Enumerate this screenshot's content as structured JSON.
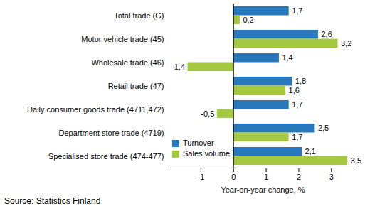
{
  "chart_data": {
    "type": "bar",
    "orientation": "horizontal",
    "categories": [
      "Total trade (G)",
      "Motor vehicle trade (45)",
      "Wholesale trade (46)",
      "Retail trade (47)",
      "Daily consumer goods trade (4711,472)",
      "Department store trade (4719)",
      "Specialised store trade (474-477)"
    ],
    "series": [
      {
        "name": "Turnover",
        "color": "#2878bd",
        "values": [
          1.7,
          2.6,
          1.4,
          1.8,
          1.7,
          2.5,
          2.1
        ],
        "value_labels": [
          "1,7",
          "2,6",
          "1,4",
          "1,8",
          "1,7",
          "2,5",
          "2,1"
        ]
      },
      {
        "name": "Sales volume",
        "color": "#a4c940",
        "values": [
          0.2,
          3.2,
          -1.4,
          1.6,
          -0.5,
          1.7,
          3.5
        ],
        "value_labels": [
          "0,2",
          "3,2",
          "-1,4",
          "1,6",
          "-0,5",
          "1,7",
          "3,5"
        ]
      }
    ],
    "xlim": [
      -2,
      3.8
    ],
    "xticks": [
      -1,
      0,
      1,
      2,
      3
    ],
    "xlabel": "Year-on-year change, %",
    "data_labels": true,
    "legend": "lower left",
    "grid": false,
    "caption": "Source: Statistics Finland"
  }
}
